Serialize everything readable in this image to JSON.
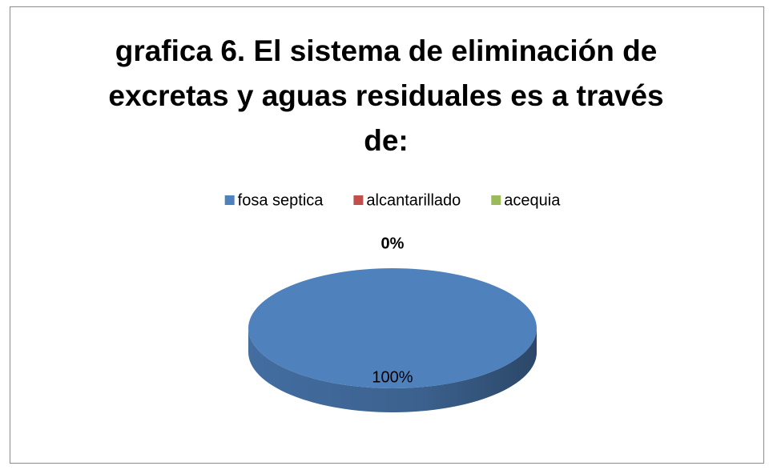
{
  "chart_data": {
    "type": "pie3d",
    "title": "grafica 6. El sistema de eliminación de excretas y aguas residuales es a través de:",
    "series": [
      {
        "name": "fosa septica",
        "color": "#4f81bd",
        "values": [
          100
        ]
      },
      {
        "name": "alcantarillado",
        "color": "#c0504d",
        "values": [
          0
        ]
      },
      {
        "name": "acequia",
        "color": "#9bbb59",
        "values": [
          0
        ]
      }
    ],
    "value_labels": [
      "100%",
      "0%",
      null
    ],
    "legend": "top"
  }
}
